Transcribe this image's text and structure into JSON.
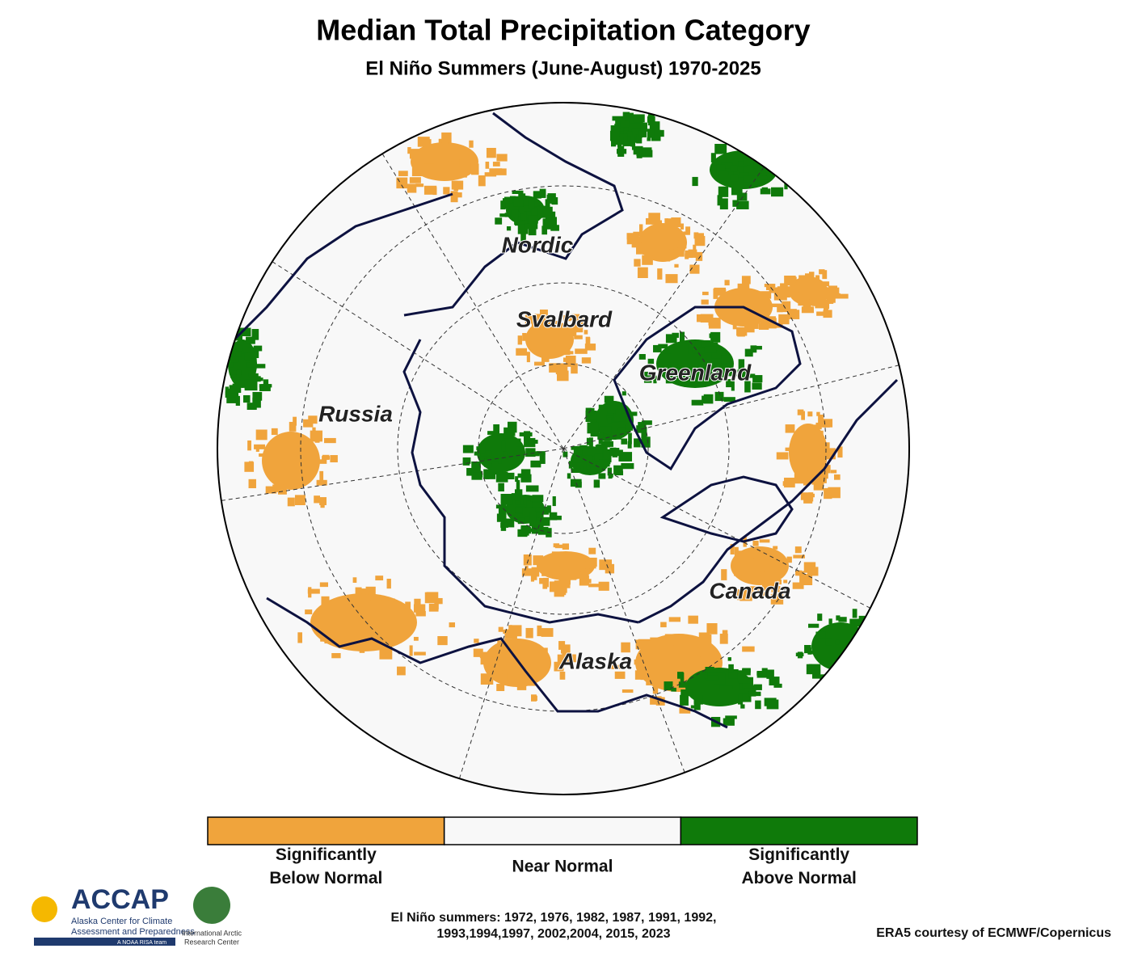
{
  "title": "Median Total Precipitation Category",
  "subtitle": "El Niño Summers (June-August) 1970-2025",
  "map": {
    "labels": [
      "Nordic",
      "Svalbard",
      "Greenland",
      "Russia",
      "Canada",
      "Alaska"
    ]
  },
  "legend": {
    "items": [
      {
        "lines": [
          "Significantly",
          "Below Normal"
        ],
        "color": "#f0a43c"
      },
      {
        "lines": [
          "Near Normal"
        ],
        "color": "#f8f8f8"
      },
      {
        "lines": [
          "Significantly",
          "Above Normal"
        ],
        "color": "#0f7a0a"
      }
    ]
  },
  "footnote": {
    "lines": [
      "El Niño summers: 1972, 1976, 1982, 1987, 1991, 1992,",
      "1993,1994,1997, 2002,2004, 2015, 2023"
    ]
  },
  "source": "ERA5 courtesy of ECMWF/Copernicus",
  "logos": {
    "accap": {
      "name": "ACCAP",
      "lines": [
        "Alaska Center for Climate",
        "Assessment and Preparedness"
      ],
      "tag": "A NOAA RISA team"
    },
    "iarc": {
      "lines": [
        "International Arctic",
        "Research Center"
      ]
    }
  }
}
